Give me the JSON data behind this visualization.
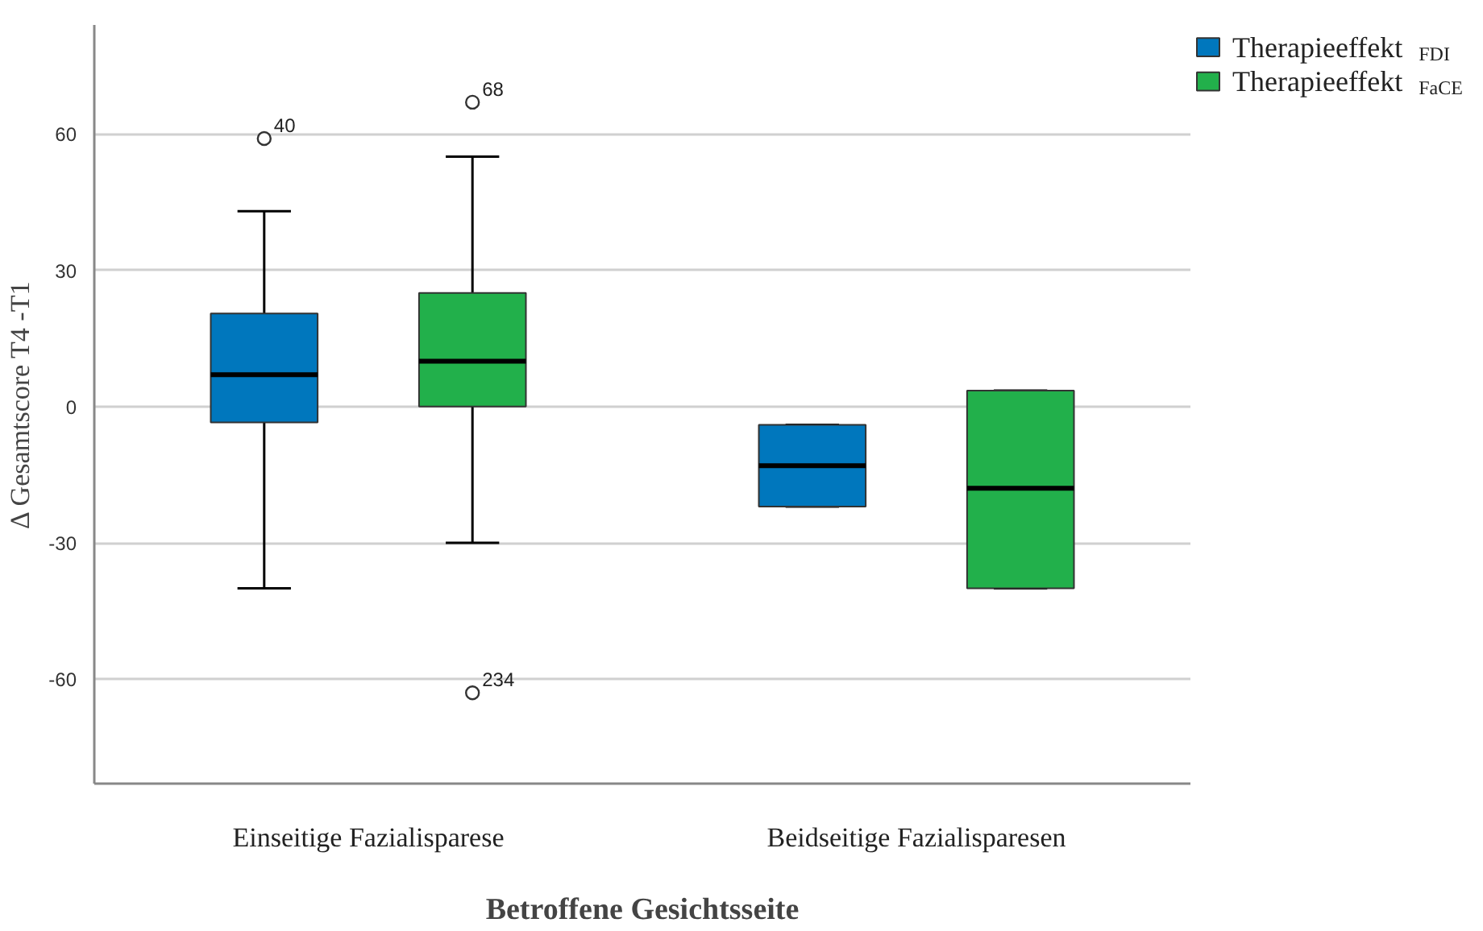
{
  "chart_data": {
    "type": "box",
    "xlabel": "Betroffene Gesichtsseite",
    "ylabel": "Δ Gesamtscore T4 -T1",
    "categories": [
      "Einseitige Fazialisparese",
      "Beidseitige Fazialisparesen"
    ],
    "ylim": [
      -83,
      84
    ],
    "yticks": [
      {
        "value": -60,
        "label": "-60"
      },
      {
        "value": -30,
        "label": "-30"
      },
      0,
      30,
      60
    ],
    "grid": "y",
    "legend": "top right",
    "series": [
      {
        "name": "Therapieeffekt $_{FDI}$",
        "color": "#0077bd",
        "boxes": [
          {
            "low": -40,
            "q1": -3.5,
            "median": 7,
            "q3": 20.5,
            "high": 43,
            "outliers": [
              59
            ]
          },
          {
            "low": -22,
            "q1": -22,
            "median": -13,
            "q3": -4,
            "high": -4
          }
        ]
      },
      {
        "name": "Therapieeffekt $_{FaCE}$",
        "color": "#22b04b",
        "boxes": [
          {
            "low": -30,
            "q1": 0,
            "median": 10,
            "q3": 25,
            "high": 55,
            "outliers": [
              67,
              -63
            ]
          },
          {
            "low": -40,
            "q1": -40,
            "median": -18,
            "q3": 3.5,
            "high": 3.5
          }
        ]
      }
    ],
    "annotations": [
      "40",
      "68",
      "234"
    ]
  }
}
